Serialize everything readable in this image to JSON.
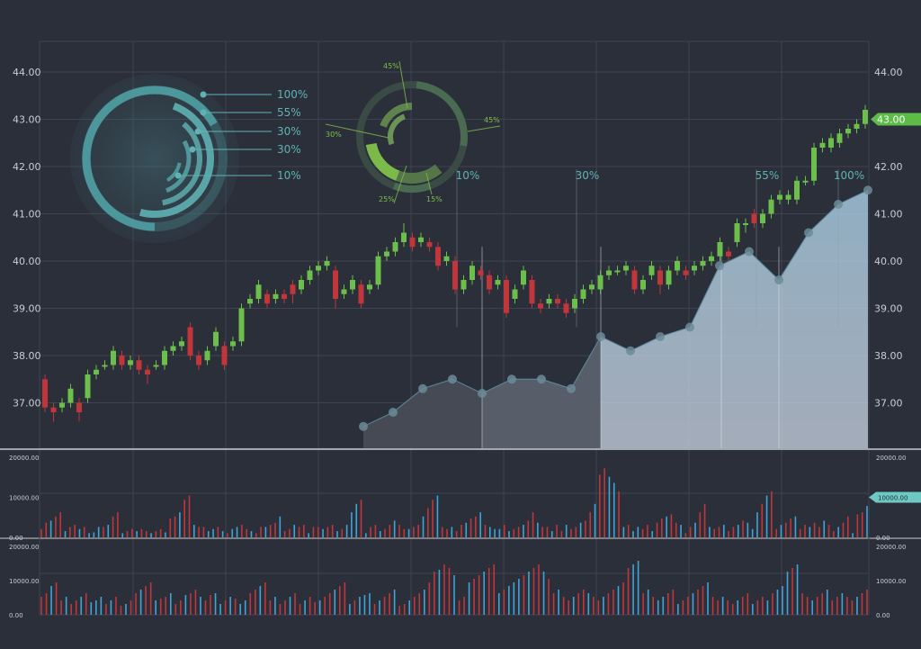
{
  "chart_data": [
    {
      "type": "candlestick",
      "ylim": [
        36.2,
        44.8
      ],
      "y_ticks": [
        "44.00",
        "43.00",
        "42.00",
        "41.00",
        "40.00",
        "39.00",
        "38.00",
        "37.00"
      ],
      "y_tick_values": [
        44,
        43,
        42,
        41,
        40,
        39,
        38,
        37
      ],
      "price_badge": "43.00",
      "candles": [
        [
          37.5,
          36.9,
          37.6,
          36.8
        ],
        [
          36.9,
          36.8,
          37.0,
          36.6
        ],
        [
          36.9,
          37.0,
          37.1,
          36.8
        ],
        [
          37.0,
          37.3,
          37.4,
          36.9
        ],
        [
          37.0,
          36.8,
          37.1,
          36.6
        ],
        [
          37.1,
          37.6,
          37.7,
          37.0
        ],
        [
          37.6,
          37.7,
          37.8,
          37.5
        ],
        [
          37.8,
          37.8,
          37.9,
          37.7
        ],
        [
          37.8,
          38.1,
          38.2,
          37.7
        ],
        [
          38.0,
          37.8,
          38.1,
          37.7
        ],
        [
          37.8,
          37.9,
          38.0,
          37.7
        ],
        [
          37.9,
          37.7,
          38.0,
          37.6
        ],
        [
          37.7,
          37.6,
          37.8,
          37.4
        ],
        [
          37.8,
          37.8,
          37.9,
          37.7
        ],
        [
          37.8,
          38.1,
          38.2,
          37.7
        ],
        [
          38.1,
          38.2,
          38.3,
          38.0
        ],
        [
          38.2,
          38.3,
          38.4,
          38.1
        ],
        [
          38.6,
          38.0,
          38.7,
          37.9
        ],
        [
          38.0,
          37.8,
          38.1,
          37.7
        ],
        [
          37.9,
          38.1,
          38.2,
          37.8
        ],
        [
          38.2,
          38.5,
          38.6,
          38.1
        ],
        [
          38.2,
          37.8,
          38.3,
          37.7
        ],
        [
          38.2,
          38.3,
          38.4,
          38.1
        ],
        [
          38.3,
          39.0,
          39.1,
          38.2
        ],
        [
          39.1,
          39.2,
          39.3,
          39.0
        ],
        [
          39.2,
          39.5,
          39.6,
          39.1
        ],
        [
          39.3,
          39.1,
          39.4,
          39.0
        ],
        [
          39.2,
          39.3,
          39.4,
          39.1
        ],
        [
          39.3,
          39.2,
          39.4,
          39.1
        ],
        [
          39.5,
          39.3,
          39.6,
          39.1
        ],
        [
          39.4,
          39.6,
          39.7,
          39.3
        ],
        [
          39.6,
          39.8,
          39.9,
          39.5
        ],
        [
          39.8,
          39.9,
          40.0,
          39.7
        ],
        [
          39.9,
          40.0,
          40.1,
          39.8
        ],
        [
          39.8,
          39.2,
          39.9,
          39.0
        ],
        [
          39.3,
          39.4,
          39.5,
          39.2
        ],
        [
          39.4,
          39.6,
          39.7,
          39.3
        ],
        [
          39.5,
          39.1,
          39.6,
          39.0
        ],
        [
          39.4,
          39.5,
          39.6,
          39.3
        ],
        [
          39.5,
          40.1,
          40.2,
          39.4
        ],
        [
          40.1,
          40.2,
          40.3,
          40.0
        ],
        [
          40.2,
          40.4,
          40.5,
          40.1
        ],
        [
          40.4,
          40.6,
          40.8,
          40.3
        ],
        [
          40.5,
          40.3,
          40.6,
          40.2
        ],
        [
          40.4,
          40.5,
          40.6,
          40.3
        ],
        [
          40.4,
          40.3,
          40.5,
          40.2
        ],
        [
          40.3,
          39.9,
          40.4,
          39.8
        ],
        [
          40.0,
          40.1,
          40.2,
          39.9
        ],
        [
          40.0,
          39.4,
          40.1,
          39.3
        ],
        [
          39.4,
          39.6,
          39.7,
          39.3
        ],
        [
          39.6,
          39.9,
          40.0,
          39.5
        ],
        [
          39.8,
          39.7,
          39.9,
          39.6
        ],
        [
          39.7,
          39.4,
          39.8,
          39.3
        ],
        [
          39.5,
          39.6,
          39.7,
          39.4
        ],
        [
          39.6,
          38.9,
          39.7,
          38.8
        ],
        [
          39.2,
          39.4,
          39.5,
          39.1
        ],
        [
          39.5,
          39.8,
          39.9,
          39.4
        ],
        [
          39.6,
          39.1,
          39.7,
          39.0
        ],
        [
          39.1,
          39.0,
          39.2,
          38.9
        ],
        [
          39.1,
          39.2,
          39.3,
          39.0
        ],
        [
          39.2,
          39.1,
          39.3,
          39.0
        ],
        [
          39.1,
          38.9,
          39.2,
          38.8
        ],
        [
          39.0,
          39.2,
          39.3,
          38.9
        ],
        [
          39.2,
          39.4,
          39.5,
          39.1
        ],
        [
          39.4,
          39.5,
          39.6,
          39.3
        ],
        [
          39.4,
          39.7,
          39.8,
          39.3
        ],
        [
          39.7,
          39.8,
          39.9,
          39.6
        ],
        [
          39.8,
          39.8,
          39.9,
          39.7
        ],
        [
          39.8,
          39.9,
          40.0,
          39.7
        ],
        [
          39.8,
          39.4,
          39.9,
          39.3
        ],
        [
          39.4,
          39.6,
          39.7,
          39.3
        ],
        [
          39.7,
          39.9,
          40.0,
          39.6
        ],
        [
          39.8,
          39.5,
          39.9,
          39.3
        ],
        [
          39.5,
          39.8,
          39.9,
          39.4
        ],
        [
          39.8,
          40.0,
          40.1,
          39.7
        ],
        [
          39.8,
          39.7,
          39.9,
          39.6
        ],
        [
          39.8,
          39.9,
          40.0,
          39.7
        ],
        [
          39.9,
          40.0,
          40.1,
          39.8
        ],
        [
          40.0,
          40.1,
          40.2,
          39.9
        ],
        [
          40.1,
          40.4,
          40.5,
          40.0
        ],
        [
          40.2,
          40.1,
          40.3,
          40.0
        ],
        [
          40.4,
          40.8,
          40.9,
          40.3
        ],
        [
          40.8,
          40.8,
          40.9,
          40.6
        ],
        [
          41.0,
          40.8,
          41.1,
          40.7
        ],
        [
          40.8,
          41.0,
          41.1,
          40.7
        ],
        [
          41.0,
          41.3,
          41.4,
          40.9
        ],
        [
          41.3,
          41.4,
          41.5,
          41.2
        ],
        [
          41.3,
          41.4,
          41.5,
          41.2
        ],
        [
          41.3,
          41.7,
          41.8,
          41.2
        ],
        [
          41.7,
          41.7,
          41.8,
          41.6
        ],
        [
          41.7,
          42.4,
          42.5,
          41.6
        ],
        [
          42.4,
          42.5,
          42.6,
          42.3
        ],
        [
          42.4,
          42.6,
          42.7,
          42.3
        ],
        [
          42.5,
          42.7,
          42.8,
          42.4
        ],
        [
          42.7,
          42.8,
          42.9,
          42.6
        ],
        [
          42.8,
          42.9,
          43.0,
          42.7
        ],
        [
          42.9,
          43.2,
          43.3,
          42.8
        ]
      ]
    },
    {
      "type": "area",
      "x": [
        404,
        437,
        470,
        503,
        536,
        569,
        602,
        635,
        668,
        701,
        734,
        767,
        800,
        833,
        866,
        899,
        932,
        965
      ],
      "y": [
        36.5,
        36.8,
        37.3,
        37.5,
        37.2,
        37.5,
        37.5,
        37.3,
        38.4,
        38.1,
        38.4,
        38.6,
        39.9,
        40.2,
        39.6,
        40.6,
        41.2,
        41.5
      ],
      "labels": [
        "10%",
        "30%",
        "55%",
        "100%"
      ],
      "label_positions": [
        520,
        653,
        853,
        944
      ]
    },
    {
      "type": "bar",
      "ylim": [
        0,
        20000
      ],
      "y_ticks": [
        "20000.00",
        "10000.00",
        "0.00"
      ],
      "y_tick_values": [
        20000,
        10000,
        0
      ],
      "badge": "10000.00",
      "values": [
        2000,
        3500,
        4000,
        5000,
        6000,
        1500,
        2500,
        3000,
        2000,
        2500,
        1000,
        1200,
        2500,
        2500,
        3000,
        5000,
        6000,
        1000,
        1500,
        2000,
        1500,
        2000,
        1500,
        1000,
        1500,
        2000,
        1200,
        4500,
        5000,
        6000,
        9000,
        10000,
        3000,
        2500,
        2500,
        1500,
        2000,
        2500,
        1500,
        1000,
        2000,
        2500,
        3000,
        2000,
        1500,
        1000,
        2500,
        2500,
        3000,
        3500,
        5000,
        1500,
        2000,
        3000,
        2500,
        3000,
        1000,
        2500,
        2500,
        2000,
        2500,
        3000,
        1500,
        2000,
        3000,
        6000,
        8000,
        9000,
        1000,
        2500,
        3000,
        1500,
        2000,
        3000,
        4000,
        3000,
        2000,
        2000,
        2500,
        3000,
        5000,
        7000,
        9000,
        10000,
        2500,
        2000,
        2500,
        1500,
        3000,
        3500,
        4500,
        5000,
        6000,
        3000,
        2500,
        2000,
        2000,
        3000,
        1500,
        2000,
        2500,
        3000,
        4000,
        6000,
        3500,
        2500,
        2500,
        1500,
        3000,
        1500,
        3000,
        2000,
        2500,
        3500,
        4000,
        6000,
        8000,
        15000,
        16500,
        14500,
        13000,
        11000,
        2500,
        3000,
        1500,
        2500,
        2000,
        3000,
        1500,
        3500,
        4500,
        5000,
        5500,
        3500,
        3000,
        1000,
        2500,
        3500,
        6000,
        8000,
        2500,
        2000,
        2500,
        3000,
        1500,
        2500,
        3000,
        4000,
        3500,
        2000,
        6000,
        8000,
        10000,
        11000,
        2000,
        3000,
        3500,
        4500,
        5000,
        2000,
        3000,
        2500,
        3500,
        2500,
        4000,
        3000,
        1500,
        2500,
        3500,
        5000,
        1000,
        5500,
        6000,
        7500
      ],
      "colors": "rb"
    },
    {
      "type": "bar",
      "ylim": [
        0,
        20000
      ],
      "y_ticks": [
        "20000.00",
        "10000.00",
        "0.00"
      ],
      "y_tick_values": [
        20000,
        10000,
        0
      ],
      "values": [
        5000,
        6000,
        8000,
        9000,
        4000,
        5000,
        3000,
        4000,
        5000,
        6000,
        3500,
        4000,
        5000,
        3000,
        4000,
        5000,
        2500,
        3000,
        4000,
        6000,
        7000,
        8000,
        9000,
        4000,
        4500,
        5000,
        6000,
        3000,
        4000,
        5500,
        6000,
        7000,
        5000,
        4000,
        5500,
        6000,
        3000,
        4000,
        5000,
        4500,
        3000,
        4000,
        6000,
        7000,
        8000,
        9000,
        4000,
        5000,
        3000,
        4000,
        5000,
        6000,
        3000,
        4000,
        5000,
        3500,
        4000,
        5000,
        6000,
        7000,
        8000,
        9000,
        3000,
        4000,
        5000,
        5500,
        6000,
        3000,
        4000,
        5000,
        6000,
        7000,
        2500,
        3000,
        4000,
        5000,
        6000,
        7000,
        9000,
        12000,
        12500,
        14000,
        13000,
        11000,
        4000,
        5000,
        9000,
        10000,
        11000,
        12000,
        13000,
        14000,
        6000,
        7000,
        8000,
        9000,
        10000,
        11000,
        12000,
        13000,
        14000,
        12000,
        10000,
        6000,
        7000,
        5000,
        4000,
        5000,
        6000,
        7000,
        6000,
        5000,
        4000,
        5000,
        6000,
        7000,
        8000,
        9000,
        13000,
        14000,
        15000,
        6000,
        7000,
        5000,
        4000,
        5000,
        6000,
        7000,
        3000,
        4000,
        5000,
        6000,
        7000,
        8000,
        9000,
        5000,
        4000,
        5000,
        4000,
        3000,
        4000,
        5000,
        6000,
        3000,
        4000,
        5000,
        4000,
        6000,
        7000,
        8000,
        12000,
        13000,
        14000,
        6000,
        5000,
        4000,
        5000,
        6000,
        7000,
        4000,
        5000,
        6000,
        5000,
        4000,
        5000,
        6000,
        7000
      ],
      "colors": "rb"
    },
    {
      "type": "pie",
      "title": "",
      "labels": [
        "100%",
        "55%",
        "30%",
        "30%",
        "10%"
      ],
      "values": [
        1.0,
        0.55,
        0.3,
        0.3,
        0.1
      ]
    },
    {
      "type": "pie",
      "title": "",
      "labels": [
        "45%",
        "45%",
        "30%",
        "25%",
        "15%"
      ],
      "values": [
        0.45,
        0.45,
        0.3,
        0.25,
        0.15
      ]
    }
  ],
  "colors": {
    "background": "#2b2f3a",
    "grid": "#3e4350",
    "up": "#6dbf4b",
    "down": "#c0363a",
    "volume_blue": "#3fa4d8",
    "volume_red": "#c0363a",
    "teal": "#4f9fa3",
    "area": "#a6c8df",
    "badge_green": "#5dbb48",
    "badge_teal": "#6ec9c4"
  }
}
